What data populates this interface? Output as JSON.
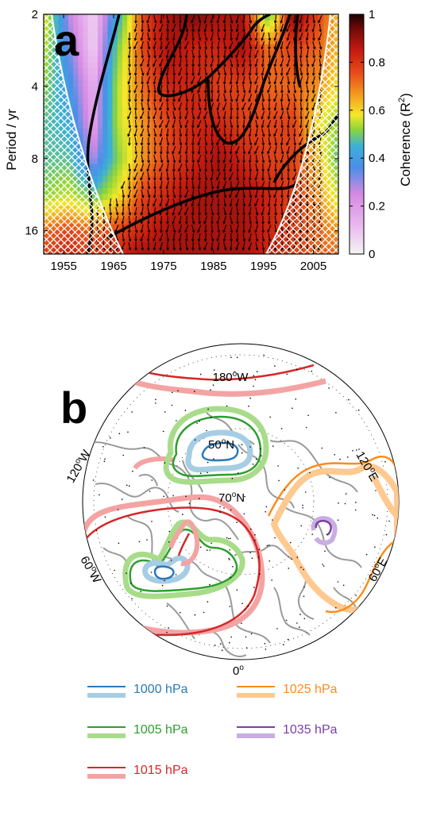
{
  "panel_a": {
    "letter": "a",
    "ylabel": "Period / yr",
    "cbar_label": "Coherence (R",
    "cbar_label_sup": "2",
    "cbar_label_end": ")"
  },
  "panel_b": {
    "letter": "b",
    "longitude_labels": {
      "top": "180",
      "top_suffix": "W",
      "upper_left": "120",
      "upper_left_suffix": "W",
      "upper_right": "120",
      "upper_right_suffix": "E",
      "lower_left": "60",
      "lower_left_suffix": "W",
      "lower_right": "60",
      "lower_right_suffix": "E",
      "bottom": "0",
      "deg": "o"
    },
    "latitude_labels": {
      "inner": "50",
      "inner_suffix": "N",
      "outer": "70",
      "outer_suffix": "N"
    },
    "legend": [
      {
        "label": "1000 hPa",
        "color": "#2a7ab8",
        "band": "#a6cde3"
      },
      {
        "label": "1005 hPa",
        "color": "#2e9e2e",
        "band": "#a8dc8a"
      },
      {
        "label": "1015 hPa",
        "color": "#d62728",
        "band": "#f4a3a3"
      },
      {
        "label": "1025 hPa",
        "color": "#ff8c1a",
        "band": "#ffc98f"
      },
      {
        "label": "1035 hPa",
        "color": "#7a3fa8",
        "band": "#c9aee0"
      }
    ]
  },
  "chart_data": [
    {
      "type": "heatmap",
      "title": "",
      "xlabel": "",
      "ylabel": "Period / yr",
      "x_ticks": [
        1955,
        1965,
        1975,
        1985,
        1995,
        2005
      ],
      "xlim": [
        1951,
        2010
      ],
      "y_ticks": [
        2,
        4,
        8,
        16
      ],
      "ylim": [
        2,
        20
      ],
      "y_scale": "log2",
      "colorbar": {
        "label": "Coherence (R2)",
        "ticks": [
          0,
          0.2,
          0.4,
          0.6,
          0.8,
          1
        ],
        "range": [
          0,
          1
        ],
        "colormap": [
          "#f4f4f4",
          "#e9b8ef",
          "#d58ae2",
          "#4b8ee8",
          "#3bb0d6",
          "#8ed43a",
          "#f4e82a",
          "#f4a020",
          "#e8501a",
          "#c41a10",
          "#700a08",
          "#1a0000"
        ]
      },
      "coherence_grid": {
        "years": [
          1951,
          1956,
          1961,
          1966,
          1971,
          1976,
          1981,
          1986,
          1991,
          1996,
          2001,
          2006,
          2010
        ],
        "periods": [
          2,
          2.8,
          4,
          5.7,
          8,
          11.3,
          16,
          20
        ],
        "values": [
          [
            0.55,
            0.2,
            0.05,
            0.35,
            0.75,
            0.85,
            0.9,
            0.85,
            0.85,
            0.4,
            0.9,
            0.75,
            0.6
          ],
          [
            0.5,
            0.25,
            0.05,
            0.45,
            0.75,
            0.85,
            0.8,
            0.8,
            0.85,
            0.7,
            0.75,
            0.7,
            0.6
          ],
          [
            0.45,
            0.3,
            0.1,
            0.5,
            0.7,
            0.8,
            0.8,
            0.75,
            0.75,
            0.7,
            0.7,
            0.65,
            0.55
          ],
          [
            0.4,
            0.35,
            0.12,
            0.5,
            0.65,
            0.75,
            0.8,
            0.8,
            0.75,
            0.75,
            0.75,
            0.55,
            0.45
          ],
          [
            0.4,
            0.4,
            0.2,
            0.45,
            0.65,
            0.75,
            0.8,
            0.85,
            0.8,
            0.75,
            0.75,
            0.6,
            0.4
          ],
          [
            0.45,
            0.5,
            0.4,
            0.55,
            0.75,
            0.8,
            0.85,
            0.85,
            0.85,
            0.8,
            0.75,
            0.65,
            0.5
          ],
          [
            0.7,
            0.75,
            0.7,
            0.75,
            0.8,
            0.85,
            0.85,
            0.85,
            0.85,
            0.8,
            0.75,
            0.7,
            0.65
          ],
          [
            0.75,
            0.8,
            0.75,
            0.8,
            0.85,
            0.85,
            0.85,
            0.85,
            0.85,
            0.8,
            0.75,
            0.7,
            0.7
          ]
        ]
      },
      "significance_contour": "black line",
      "cone_of_influence": "white hatched"
    }
  ]
}
